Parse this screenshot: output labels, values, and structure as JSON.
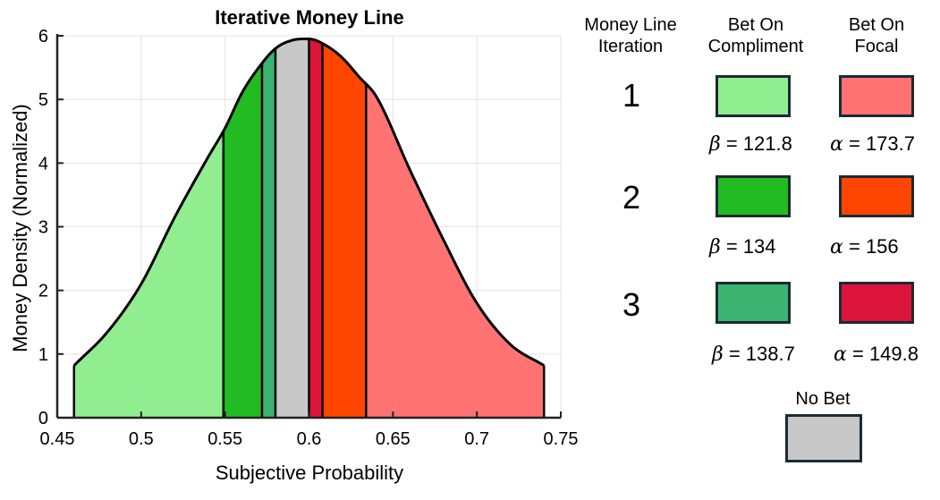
{
  "chart_data": {
    "type": "area",
    "title": "Iterative Money Line",
    "xlabel": "Subjective Probability",
    "ylabel": "Money Density (Normalized)",
    "xlim": [
      0.45,
      0.75
    ],
    "ylim": [
      0,
      6
    ],
    "x_ticks": [
      "0.45",
      "0.5",
      "0.55",
      "0.6",
      "0.65",
      "0.7",
      "0.75"
    ],
    "y_ticks": [
      "0",
      "1",
      "2",
      "3",
      "4",
      "5",
      "6"
    ],
    "grid": true,
    "curve": {
      "x": [
        0.46,
        0.48,
        0.5,
        0.52,
        0.54,
        0.55,
        0.56,
        0.57,
        0.58,
        0.59,
        0.6,
        0.61,
        0.62,
        0.63,
        0.64,
        0.66,
        0.68,
        0.7,
        0.72,
        0.74
      ],
      "y": [
        0.82,
        1.35,
        2.1,
        3.15,
        4.1,
        4.55,
        5.1,
        5.5,
        5.8,
        5.93,
        5.95,
        5.85,
        5.65,
        5.35,
        5.05,
        3.9,
        2.8,
        1.8,
        1.15,
        0.82
      ]
    },
    "regions": [
      {
        "name": "Bet On Compliment 1",
        "from": 0.46,
        "to": 0.549,
        "color": "#90ee90"
      },
      {
        "name": "Bet On Compliment 2",
        "from": 0.549,
        "to": 0.572,
        "color": "#22bb22"
      },
      {
        "name": "Bet On Compliment 3",
        "from": 0.572,
        "to": 0.58,
        "color": "#3cb371"
      },
      {
        "name": "No Bet",
        "from": 0.58,
        "to": 0.6,
        "color": "#c8c8c8"
      },
      {
        "name": "Bet On Focal 3",
        "from": 0.6,
        "to": 0.608,
        "color": "#dc143c"
      },
      {
        "name": "Bet On Focal 2",
        "from": 0.608,
        "to": 0.634,
        "color": "#ff4500"
      },
      {
        "name": "Bet On Focal 1",
        "from": 0.634,
        "to": 0.74,
        "color": "#ff7373"
      }
    ]
  },
  "legend": {
    "col_iteration": "Money Line Iteration",
    "col_compliment": "Bet On Compliment",
    "col_focal": "Bet On Focal",
    "rows": [
      {
        "iteration": "1",
        "compliment_color": "#90ee90",
        "focal_color": "#ff7373",
        "beta_symbol": "β",
        "beta_value": "= 121.8",
        "alpha_symbol": "α",
        "alpha_value": "= 173.7"
      },
      {
        "iteration": "2",
        "compliment_color": "#22bb22",
        "focal_color": "#ff4500",
        "beta_symbol": "β",
        "beta_value": "= 134",
        "alpha_symbol": "α",
        "alpha_value": "= 156"
      },
      {
        "iteration": "3",
        "compliment_color": "#3cb371",
        "focal_color": "#dc143c",
        "beta_symbol": "β",
        "beta_value": "= 138.7",
        "alpha_symbol": "α",
        "alpha_value": "= 149.8"
      }
    ],
    "no_bet_label": "No Bet",
    "no_bet_color": "#c8c8c8"
  }
}
